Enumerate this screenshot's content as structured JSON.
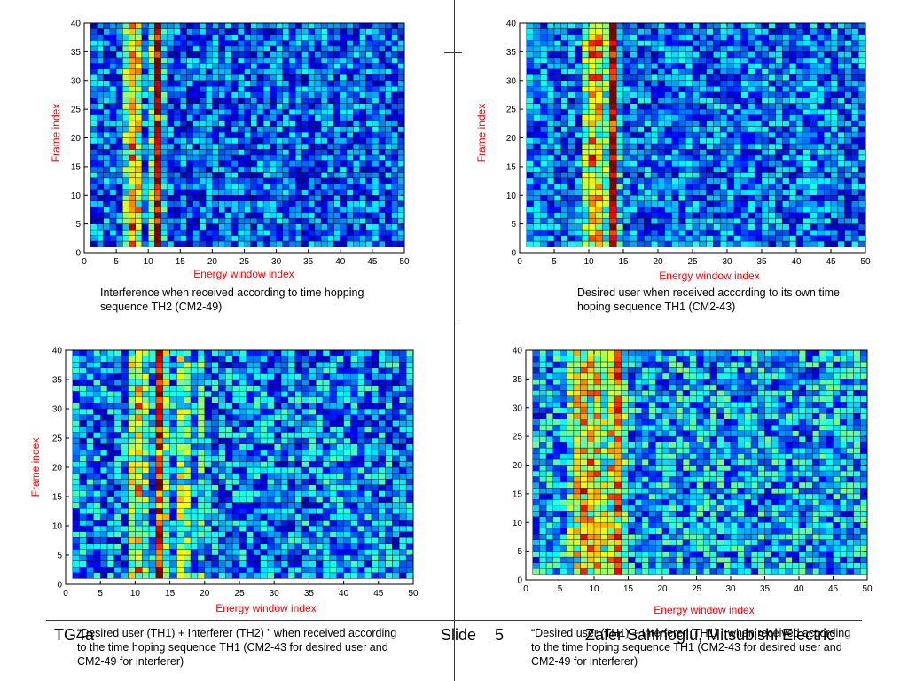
{
  "footer": {
    "left": "TG4a",
    "slide_label": "Slide",
    "slide_number": "5",
    "author": "Zafer Sahinoglu, Mitsubishi Electric"
  },
  "captions": {
    "tl": "Interference when received according to time hopping sequence TH2 (CM2-49)",
    "tr": "Desired user when received according to its own time hoping sequence TH1 (CM2-43)",
    "bl": "“Desired user (TH1) + Interferer (TH2) ” when received according to the time hoping sequence TH1 (CM2-43 for desired user and CM2-49 for interferer)",
    "br": "“Desired user (TH1) + Interferer (TH1) ” when received according to the time hoping sequence TH1 (CM2-43 for desired user and CM2-49 for interferer)"
  },
  "colormap": "jet",
  "chart_data": [
    {
      "id": "tl",
      "type": "heatmap",
      "xlabel": "Energy window index",
      "ylabel": "Frame index",
      "xlim": [
        0,
        50
      ],
      "ylim": [
        0,
        40
      ],
      "xticks": [
        0,
        5,
        10,
        15,
        20,
        25,
        30,
        35,
        40,
        45,
        50
      ],
      "yticks": [
        0,
        5,
        10,
        15,
        20,
        25,
        30,
        35,
        40
      ],
      "cols": 49,
      "rows": 39,
      "base_level": 0.22,
      "noise": 0.17,
      "column_levels": {
        "6": 0.45,
        "7": 0.66,
        "8": 0.58,
        "10": 0.47,
        "11": 0.92,
        "12": 0.38
      },
      "grid": true
    },
    {
      "id": "tr",
      "type": "heatmap",
      "xlabel": "Energy window index",
      "ylabel": "Frame index",
      "xlim": [
        0,
        50
      ],
      "ylim": [
        0,
        40
      ],
      "xticks": [
        0,
        5,
        10,
        15,
        20,
        25,
        30,
        35,
        40,
        45,
        50
      ],
      "yticks": [
        0,
        5,
        10,
        15,
        20,
        25,
        30,
        35,
        40
      ],
      "cols": 49,
      "rows": 39,
      "base_level": 0.24,
      "noise": 0.17,
      "column_levels": {
        "9": 0.48,
        "10": 0.66,
        "11": 0.6,
        "12": 0.46,
        "13": 0.94,
        "14": 0.35
      },
      "grid": true
    },
    {
      "id": "bl",
      "type": "heatmap",
      "xlabel": "Energy window index",
      "ylabel": "Frame index",
      "xlim": [
        0,
        50
      ],
      "ylim": [
        0,
        40
      ],
      "xticks": [
        0,
        5,
        10,
        15,
        20,
        25,
        30,
        35,
        40,
        45,
        50
      ],
      "yticks": [
        0,
        5,
        10,
        15,
        20,
        25,
        30,
        35,
        40
      ],
      "cols": 49,
      "rows": 39,
      "base_level": 0.26,
      "noise": 0.2,
      "column_levels": {
        "9": 0.5,
        "10": 0.58,
        "11": 0.44,
        "13": 0.82,
        "14": 0.5,
        "16": 0.5,
        "17": 0.42,
        "19": 0.38
      },
      "grid": true
    },
    {
      "id": "br",
      "type": "heatmap",
      "xlabel": "Energy window index",
      "ylabel": "",
      "xlim": [
        0,
        50
      ],
      "ylim": [
        0,
        40
      ],
      "xticks": [
        0,
        5,
        10,
        15,
        20,
        25,
        30,
        35,
        40,
        45,
        50
      ],
      "yticks": [
        0,
        5,
        10,
        15,
        20,
        25,
        30,
        35,
        40
      ],
      "cols": 49,
      "rows": 39,
      "base_level": 0.3,
      "noise": 0.2,
      "column_levels": {
        "6": 0.44,
        "7": 0.56,
        "8": 0.62,
        "9": 0.6,
        "10": 0.6,
        "11": 0.5,
        "12": 0.58,
        "13": 0.7,
        "14": 0.42
      },
      "grid": true
    }
  ]
}
